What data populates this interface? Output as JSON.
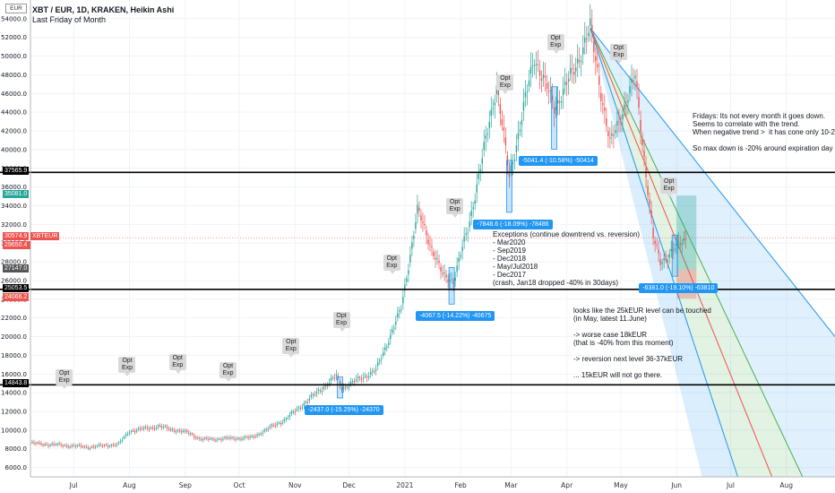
{
  "header": {
    "title": "XBT / EUR, 1D, KRAKEN, Heikin Ashi",
    "subtitle": "Last Friday of Month",
    "currency_button": "EUR"
  },
  "chart_data": {
    "type": "candlestick",
    "title": "XBT / EUR, 1D, KRAKEN, Heikin Ashi",
    "ylim": [
      5000,
      56000
    ],
    "y_ticks": [
      6000,
      8000,
      10000,
      12000,
      14000,
      16000,
      18000,
      20000,
      22000,
      24000,
      26000,
      28000,
      30000,
      32000,
      34000,
      36000,
      38000,
      40000,
      42000,
      44000,
      46000,
      48000,
      50000,
      52000,
      54000
    ],
    "y_tick_labels": [
      "6000.0",
      "8000.0",
      "10000.0",
      "12000.0",
      "14000.0",
      "16000.0",
      "18000.0",
      "20000.0",
      "22000.0",
      "24000.0",
      "26000.0",
      "28000.0",
      "30000.0",
      "32000.0",
      "34000.0",
      "36000.0",
      "38000.0",
      "40000.0",
      "42000.0",
      "44000.0",
      "46000.0",
      "48000.0",
      "50000.0",
      "52000.0",
      "54000.0"
    ],
    "x_range": [
      "2020-06-07",
      "2021-08-28"
    ],
    "x_ticks": [
      {
        "date": "2020-07-01",
        "label": "Jul"
      },
      {
        "date": "2020-08-01",
        "label": "Aug"
      },
      {
        "date": "2020-09-01",
        "label": "Sep"
      },
      {
        "date": "2020-10-01",
        "label": "Oct"
      },
      {
        "date": "2020-11-01",
        "label": "Nov"
      },
      {
        "date": "2020-12-01",
        "label": "Dec"
      },
      {
        "date": "2021-01-01",
        "label": "2021"
      },
      {
        "date": "2021-02-01",
        "label": "Feb"
      },
      {
        "date": "2021-03-01",
        "label": "Mar"
      },
      {
        "date": "2021-04-01",
        "label": "Apr"
      },
      {
        "date": "2021-05-01",
        "label": "May"
      },
      {
        "date": "2021-06-01",
        "label": "Jun"
      },
      {
        "date": "2021-07-01",
        "label": "Jul"
      },
      {
        "date": "2021-08-01",
        "label": "Aug"
      }
    ],
    "price_path": [
      {
        "date": "2020-06-07",
        "close": 8600
      },
      {
        "date": "2020-07-10",
        "close": 8200
      },
      {
        "date": "2020-07-26",
        "close": 8500
      },
      {
        "date": "2020-08-01",
        "close": 9900
      },
      {
        "date": "2020-08-17",
        "close": 10400
      },
      {
        "date": "2020-09-03",
        "close": 9700
      },
      {
        "date": "2020-09-10",
        "close": 9000
      },
      {
        "date": "2020-10-08",
        "close": 9200
      },
      {
        "date": "2020-10-27",
        "close": 11200
      },
      {
        "date": "2020-11-24",
        "close": 15800
      },
      {
        "date": "2020-11-27",
        "close": 14500
      },
      {
        "date": "2020-12-16",
        "close": 16400
      },
      {
        "date": "2020-12-30",
        "close": 23000
      },
      {
        "date": "2021-01-08",
        "close": 33500
      },
      {
        "date": "2021-01-15",
        "close": 30000
      },
      {
        "date": "2021-01-22",
        "close": 26500
      },
      {
        "date": "2021-01-28",
        "close": 26000
      },
      {
        "date": "2021-02-05",
        "close": 31500
      },
      {
        "date": "2021-02-13",
        "close": 39000
      },
      {
        "date": "2021-02-21",
        "close": 47000
      },
      {
        "date": "2021-02-28",
        "close": 37000
      },
      {
        "date": "2021-03-14",
        "close": 50000
      },
      {
        "date": "2021-03-25",
        "close": 44500
      },
      {
        "date": "2021-04-05",
        "close": 48500
      },
      {
        "date": "2021-04-14",
        "close": 53000
      },
      {
        "date": "2021-04-25",
        "close": 40500
      },
      {
        "date": "2021-05-09",
        "close": 47800
      },
      {
        "date": "2021-05-19",
        "close": 30500
      },
      {
        "date": "2021-05-23",
        "close": 28000
      },
      {
        "date": "2021-05-29",
        "close": 29000
      },
      {
        "date": "2021-06-06",
        "close": 30574.9
      }
    ],
    "horizontal_levels": [
      {
        "price": 37565.9,
        "label": "37565.9"
      },
      {
        "price": 25053.5,
        "label": "25053.5"
      },
      {
        "price": 14843.8,
        "label": "14843.8"
      }
    ],
    "axis_price_labels": [
      {
        "price": 35081.0,
        "label": "35081.0",
        "color": "#26a69a"
      },
      {
        "price": 30574.9,
        "label": "30574.9",
        "color": "#ef5350",
        "tag": "XBTEUR",
        "countdown": "12:43:30"
      },
      {
        "price": 29650.4,
        "label": "29650.4",
        "color": "#ef5350"
      },
      {
        "price": 27147.0,
        "label": "27147.0",
        "color": "#555555"
      },
      {
        "price": 24066.2,
        "label": "24066.2",
        "color": "#ef5350"
      }
    ],
    "opt_exp_label": [
      "Opt",
      "Exp"
    ],
    "opt_exp_dates": [
      "2020-06-26",
      "2020-07-31",
      "2020-08-28",
      "2020-09-25",
      "2020-10-30",
      "2020-11-27",
      "2020-12-25",
      "2021-01-29",
      "2021-02-26",
      "2021-03-26",
      "2021-04-30",
      "2021-05-28"
    ],
    "measurements": [
      {
        "label": "-2437.0 (-15.25%) -24370",
        "date": "2020-11-26"
      },
      {
        "label": "-4067.5 (-14.22%) -40675",
        "date": "2021-01-27"
      },
      {
        "label": "-7848.6 (-18.09%) -78486",
        "date": "2021-02-28"
      },
      {
        "label": "-5041.4 (-10.58%) -50414",
        "date": "2021-03-25"
      },
      {
        "label": "-6381.0 (-19.10%) -63810",
        "date": "2021-05-31"
      }
    ],
    "fan_origin": {
      "date": "2021-04-14",
      "price": 53000
    },
    "fan_lines": [
      {
        "through": {
          "date": "2021-08-28",
          "price": 20000
        },
        "color": "#2196f3"
      },
      {
        "through": {
          "date": "2021-08-10",
          "price": 5000
        },
        "color": "#4caf50"
      },
      {
        "through": {
          "date": "2021-07-24",
          "price": 5000
        },
        "color": "#ef5350"
      },
      {
        "through": {
          "date": "2021-07-05",
          "price": 5000
        },
        "color": "#2196f3"
      }
    ],
    "position_box": {
      "start": "2021-06-01",
      "end": "2021-06-12",
      "entry": 27147.0,
      "target": 35081.0,
      "stop": 24066.2
    },
    "colors": {
      "up": "#26a69a",
      "down": "#ef5350",
      "level": "#000000",
      "fan_blue": "#2196f3",
      "fan_green": "#4caf50",
      "fan_red": "#ef5350"
    }
  },
  "annotations": {
    "fridays": "Fridays: Its not every month it goes down.\nSeems to correlate with the trend.\nWhen negative trend >  it has cone only 10-20% d\n\nSo max down is -20% around expiration day (since",
    "exceptions": "Exceptions (continue downtrend vs. reversion)\n- Mar2020\n- Sep2019\n- Dec2018\n- May/Jul2018\n- Dec2017\n(crash, Jan18 dropped -40% in 30days)",
    "outlook": "looks like the 25kEUR level can be touched\n(in May, latest 11.June)\n\n-> worse case 18kEUR\n(that is -40% from this moment)\n\n-> reversion next level 36-37kEUR\n\n... 15kEUR will not go there."
  }
}
